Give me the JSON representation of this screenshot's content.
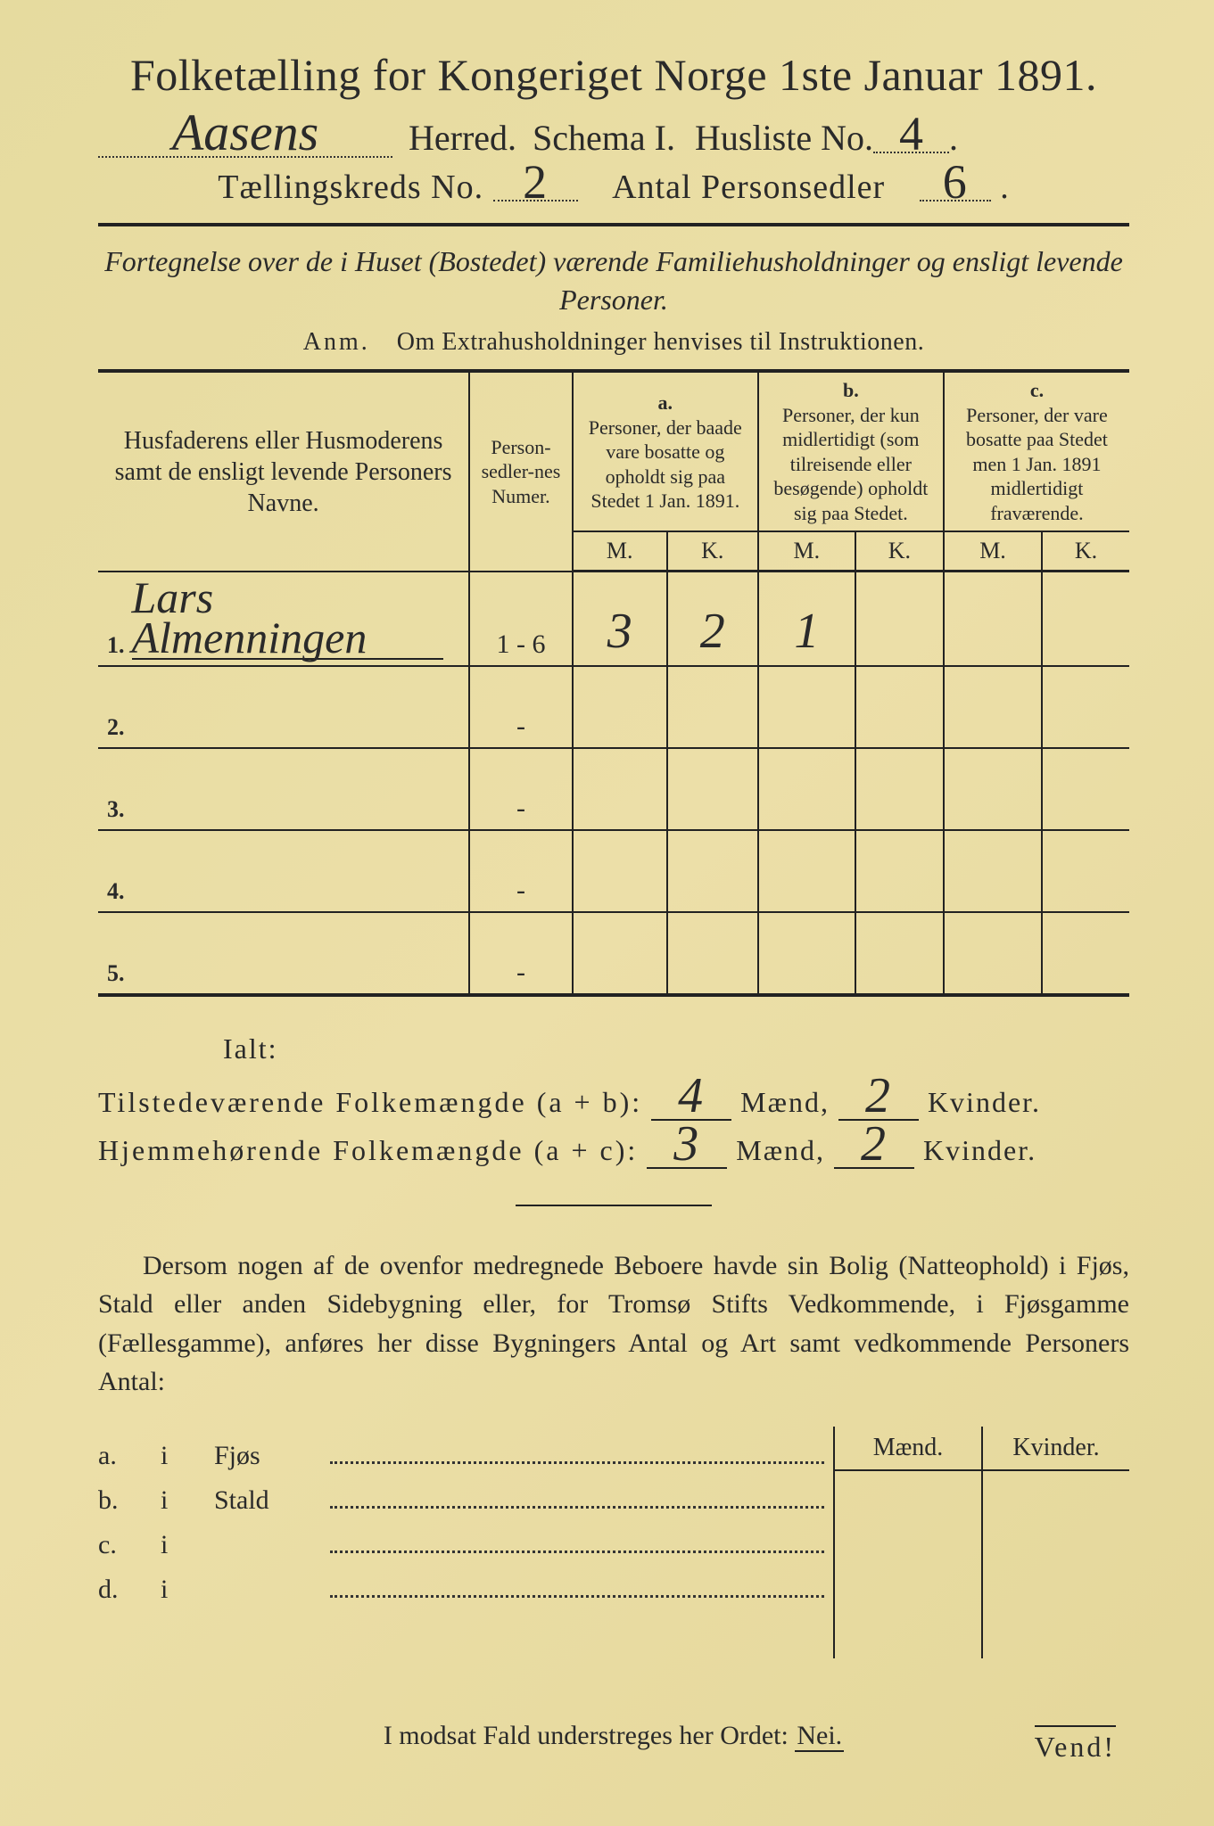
{
  "title": "Folketælling for Kongeriget Norge 1ste Januar 1891.",
  "header": {
    "herred_value": "Aasens",
    "herred_label": "Herred.",
    "schema_label": "Schema I.",
    "husliste_label": "Husliste No.",
    "husliste_value": "4",
    "kreds_label": "Tællingskreds No.",
    "kreds_value": "2",
    "personsedler_label": "Antal Personsedler",
    "personsedler_value": "6"
  },
  "subtitle": "Fortegnelse over de i Huset (Bostedet) værende Familiehusholdninger og ensligt levende Personer.",
  "anm": {
    "label": "Anm.",
    "text": "Om Extrahusholdninger henvises til Instruktionen."
  },
  "table": {
    "col_names": "Husfaderens eller Husmoderens samt de ensligt levende Personers Navne.",
    "col_numer": "Person-sedler-nes Numer.",
    "col_a_head": "a.",
    "col_a": "Personer, der baade vare bosatte og opholdt sig paa Stedet 1 Jan. 1891.",
    "col_b_head": "b.",
    "col_b": "Personer, der kun midlertidigt (som tilreisende eller besøgende) opholdt sig paa Stedet.",
    "col_c_head": "c.",
    "col_c": "Personer, der vare bosatte paa Stedet men 1 Jan. 1891 midlertidigt fraværende.",
    "mk_m": "M.",
    "mk_k": "K.",
    "rows": [
      {
        "n": "1.",
        "name": "Lars Almenningen",
        "numer": "1 - 6",
        "a_m": "3",
        "a_k": "2",
        "b_m": "1",
        "b_k": "",
        "c_m": "",
        "c_k": ""
      },
      {
        "n": "2.",
        "name": "",
        "numer": "-",
        "a_m": "",
        "a_k": "",
        "b_m": "",
        "b_k": "",
        "c_m": "",
        "c_k": ""
      },
      {
        "n": "3.",
        "name": "",
        "numer": "-",
        "a_m": "",
        "a_k": "",
        "b_m": "",
        "b_k": "",
        "c_m": "",
        "c_k": ""
      },
      {
        "n": "4.",
        "name": "",
        "numer": "-",
        "a_m": "",
        "a_k": "",
        "b_m": "",
        "b_k": "",
        "c_m": "",
        "c_k": ""
      },
      {
        "n": "5.",
        "name": "",
        "numer": "-",
        "a_m": "",
        "a_k": "",
        "b_m": "",
        "b_k": "",
        "c_m": "",
        "c_k": ""
      }
    ]
  },
  "ialt": {
    "label": "Ialt:",
    "line1_label": "Tilstedeværende Folkemængde (a + b):",
    "line1_m": "4",
    "line1_k": "2",
    "line2_label": "Hjemmehørende Folkemængde (a + c):",
    "line2_m": "3",
    "line2_k": "2",
    "maend": "Mænd,",
    "kvinder": "Kvinder."
  },
  "paragraph": "Dersom nogen af de ovenfor medregnede Beboere havde sin Bolig (Natteophold) i Fjøs, Stald eller anden Sidebygning eller, for Tromsø Stifts Vedkommende, i Fjøsgamme (Fællesgamme), anføres her disse Bygningers Antal og Art samt vedkommende Personers Antal:",
  "bygninger": {
    "head_m": "Mænd.",
    "head_k": "Kvinder.",
    "rows": [
      {
        "key": "a.",
        "i": "i",
        "label": "Fjøs"
      },
      {
        "key": "b.",
        "i": "i",
        "label": "Stald"
      },
      {
        "key": "c.",
        "i": "i",
        "label": ""
      },
      {
        "key": "d.",
        "i": "i",
        "label": ""
      }
    ]
  },
  "nei_line_prefix": "I modsat Fald understreges her Ordet:",
  "nei_word": "Nei.",
  "vend": "Vend!",
  "colors": {
    "paper": "#e8dda8",
    "ink": "#2a2a2a",
    "border_outer": "#1a1a1a"
  }
}
